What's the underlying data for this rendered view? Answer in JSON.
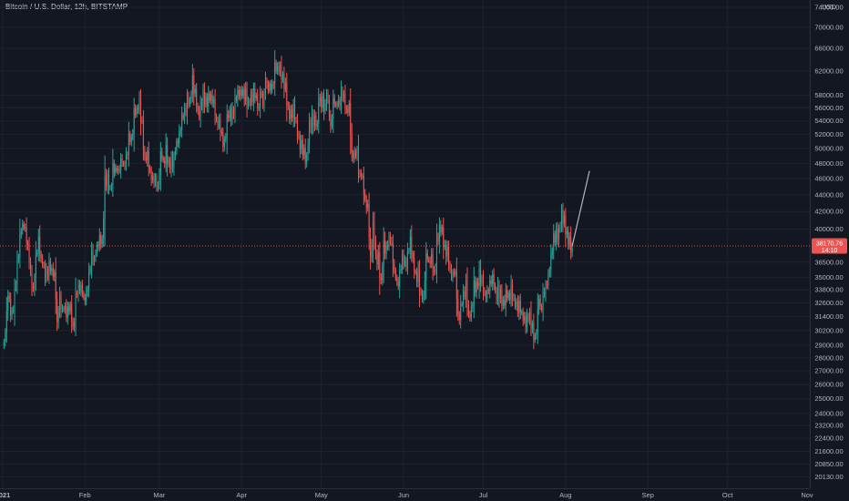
{
  "header": {
    "title": "Bitcoin / U.S. Dollar, 12h, BITSTAMP"
  },
  "axis": {
    "currency": "USD"
  },
  "last_price": {
    "value": "38170.76",
    "countdown": "14:10"
  },
  "colors": {
    "up": "#26a69a",
    "down": "#ef5350",
    "projection": "#b2b5be",
    "grid": "#1e222d",
    "price_line": "#ef5350"
  },
  "chart_data": {
    "type": "candlestick",
    "title": "Bitcoin / U.S. Dollar, 12h, BITSTAMP",
    "y_unit": "USD",
    "y_scale": "log",
    "ylim": [
      19500,
      75500
    ],
    "y_ticks": [
      "74000.00",
      "70000.00",
      "66000.00",
      "62000.00",
      "58000.00",
      "56000.00",
      "54000.00",
      "52000.00",
      "50000.00",
      "48000.00",
      "46000.00",
      "44000.00",
      "42000.00",
      "40000.00",
      "38170.76",
      "36500.00",
      "35000.00",
      "33800.00",
      "32600.00",
      "31400.00",
      "30200.00",
      "29000.00",
      "28000.00",
      "27000.00",
      "26000.00",
      "25000.00",
      "24000.00",
      "23200.00",
      "22400.00",
      "21600.00",
      "20850.00",
      "20130.00"
    ],
    "x_ticks": [
      "2021",
      "Feb",
      "Mar",
      "Apr",
      "May",
      "Jun",
      "Jul",
      "Aug",
      "Sep",
      "Oct",
      "Nov"
    ],
    "xlim": [
      "2020-12-31",
      "2021-11-01"
    ],
    "last_close": 38170.76,
    "candle_interval": "12h",
    "closes": [
      [
        "2021-01-01",
        29300
      ],
      [
        "2021-01-02",
        31900
      ],
      [
        "2021-01-03",
        33000
      ],
      [
        "2021-01-04",
        31900
      ],
      [
        "2021-01-05",
        34000
      ],
      [
        "2021-01-06",
        36800
      ],
      [
        "2021-01-07",
        39500
      ],
      [
        "2021-01-08",
        40600
      ],
      [
        "2021-01-09",
        40200
      ],
      [
        "2021-01-10",
        38200
      ],
      [
        "2021-01-11",
        35500
      ],
      [
        "2021-01-12",
        33900
      ],
      [
        "2021-01-13",
        37300
      ],
      [
        "2021-01-14",
        39200
      ],
      [
        "2021-01-15",
        36900
      ],
      [
        "2021-01-16",
        36100
      ],
      [
        "2021-01-17",
        35800
      ],
      [
        "2021-01-18",
        36600
      ],
      [
        "2021-01-19",
        35900
      ],
      [
        "2021-01-20",
        35500
      ],
      [
        "2021-01-21",
        30900
      ],
      [
        "2021-01-22",
        33200
      ],
      [
        "2021-01-23",
        32100
      ],
      [
        "2021-01-24",
        32300
      ],
      [
        "2021-01-25",
        32300
      ],
      [
        "2021-01-26",
        32500
      ],
      [
        "2021-01-27",
        30500
      ],
      [
        "2021-01-28",
        33500
      ],
      [
        "2021-01-29",
        34300
      ],
      [
        "2021-01-30",
        34300
      ],
      [
        "2021-01-31",
        33100
      ],
      [
        "2021-02-01",
        33600
      ],
      [
        "2021-02-02",
        35500
      ],
      [
        "2021-02-03",
        37700
      ],
      [
        "2021-02-04",
        36900
      ],
      [
        "2021-02-05",
        38300
      ],
      [
        "2021-02-06",
        39300
      ],
      [
        "2021-02-07",
        38900
      ],
      [
        "2021-02-08",
        46400
      ],
      [
        "2021-02-09",
        46500
      ],
      [
        "2021-02-10",
        44900
      ],
      [
        "2021-02-11",
        48000
      ],
      [
        "2021-02-12",
        47400
      ],
      [
        "2021-02-13",
        47200
      ],
      [
        "2021-02-14",
        48700
      ],
      [
        "2021-02-15",
        47900
      ],
      [
        "2021-02-16",
        49200
      ],
      [
        "2021-02-17",
        52100
      ],
      [
        "2021-02-18",
        51600
      ],
      [
        "2021-02-19",
        55900
      ],
      [
        "2021-02-20",
        56000
      ],
      [
        "2021-02-21",
        57500
      ],
      [
        "2021-02-22",
        54100
      ],
      [
        "2021-02-23",
        48900
      ],
      [
        "2021-02-24",
        49700
      ],
      [
        "2021-02-25",
        47000
      ],
      [
        "2021-02-26",
        46300
      ],
      [
        "2021-02-27",
        46200
      ],
      [
        "2021-02-28",
        45200
      ],
      [
        "2021-03-01",
        49600
      ],
      [
        "2021-03-02",
        48400
      ],
      [
        "2021-03-03",
        50500
      ],
      [
        "2021-03-04",
        48400
      ],
      [
        "2021-03-05",
        48800
      ],
      [
        "2021-03-06",
        48900
      ],
      [
        "2021-03-07",
        51000
      ],
      [
        "2021-03-08",
        52400
      ],
      [
        "2021-03-09",
        54900
      ],
      [
        "2021-03-10",
        56000
      ],
      [
        "2021-03-11",
        57800
      ],
      [
        "2021-03-12",
        57300
      ],
      [
        "2021-03-13",
        61200
      ],
      [
        "2021-03-14",
        59000
      ],
      [
        "2021-03-15",
        55600
      ],
      [
        "2021-03-16",
        56900
      ],
      [
        "2021-03-17",
        58900
      ],
      [
        "2021-03-18",
        57700
      ],
      [
        "2021-03-19",
        58300
      ],
      [
        "2021-03-20",
        58100
      ],
      [
        "2021-03-21",
        57400
      ],
      [
        "2021-03-22",
        54100
      ],
      [
        "2021-03-23",
        54300
      ],
      [
        "2021-03-24",
        52300
      ],
      [
        "2021-03-25",
        51300
      ],
      [
        "2021-03-26",
        55000
      ],
      [
        "2021-03-27",
        55800
      ],
      [
        "2021-03-28",
        55800
      ],
      [
        "2021-03-29",
        57600
      ],
      [
        "2021-03-30",
        58800
      ],
      [
        "2021-03-31",
        58900
      ],
      [
        "2021-04-01",
        59000
      ],
      [
        "2021-04-02",
        59000
      ],
      [
        "2021-04-03",
        57100
      ],
      [
        "2021-04-04",
        58200
      ],
      [
        "2021-04-05",
        59100
      ],
      [
        "2021-04-06",
        58000
      ],
      [
        "2021-04-07",
        56000
      ],
      [
        "2021-04-08",
        58100
      ],
      [
        "2021-04-09",
        58200
      ],
      [
        "2021-04-10",
        59800
      ],
      [
        "2021-04-11",
        59900
      ],
      [
        "2021-04-12",
        59800
      ],
      [
        "2021-04-13",
        63500
      ],
      [
        "2021-04-14",
        62900
      ],
      [
        "2021-04-15",
        63100
      ],
      [
        "2021-04-16",
        61500
      ],
      [
        "2021-04-17",
        60100
      ],
      [
        "2021-04-18",
        56200
      ],
      [
        "2021-04-19",
        55700
      ],
      [
        "2021-04-20",
        56500
      ],
      [
        "2021-04-21",
        54000
      ],
      [
        "2021-04-22",
        51700
      ],
      [
        "2021-04-23",
        51200
      ],
      [
        "2021-04-24",
        50100
      ],
      [
        "2021-04-25",
        49100
      ],
      [
        "2021-04-26",
        54000
      ],
      [
        "2021-04-27",
        55000
      ],
      [
        "2021-04-28",
        54800
      ],
      [
        "2021-04-29",
        53600
      ],
      [
        "2021-04-30",
        57700
      ],
      [
        "2021-05-01",
        57800
      ],
      [
        "2021-05-02",
        56600
      ],
      [
        "2021-05-03",
        57200
      ],
      [
        "2021-05-04",
        53200
      ],
      [
        "2021-05-05",
        57500
      ],
      [
        "2021-05-06",
        56400
      ],
      [
        "2021-05-07",
        57300
      ],
      [
        "2021-05-08",
        58900
      ],
      [
        "2021-05-09",
        58200
      ],
      [
        "2021-05-10",
        55800
      ],
      [
        "2021-05-11",
        56700
      ],
      [
        "2021-05-12",
        49400
      ],
      [
        "2021-05-13",
        49700
      ],
      [
        "2021-05-14",
        49900
      ],
      [
        "2021-05-15",
        46700
      ],
      [
        "2021-05-16",
        46400
      ],
      [
        "2021-05-17",
        43500
      ],
      [
        "2021-05-18",
        42900
      ],
      [
        "2021-05-19",
        37000
      ],
      [
        "2021-05-20",
        40800
      ],
      [
        "2021-05-21",
        37300
      ],
      [
        "2021-05-22",
        37500
      ],
      [
        "2021-05-23",
        34700
      ],
      [
        "2021-05-24",
        38800
      ],
      [
        "2021-05-25",
        38300
      ],
      [
        "2021-05-26",
        39300
      ],
      [
        "2021-05-27",
        38500
      ],
      [
        "2021-05-28",
        35700
      ],
      [
        "2021-05-29",
        34600
      ],
      [
        "2021-05-30",
        35700
      ],
      [
        "2021-05-31",
        37300
      ],
      [
        "2021-06-01",
        36700
      ],
      [
        "2021-06-02",
        37600
      ],
      [
        "2021-06-03",
        39200
      ],
      [
        "2021-06-04",
        36900
      ],
      [
        "2021-06-05",
        35500
      ],
      [
        "2021-06-06",
        35800
      ],
      [
        "2021-06-07",
        33600
      ],
      [
        "2021-06-08",
        33400
      ],
      [
        "2021-06-09",
        37400
      ],
      [
        "2021-06-10",
        36700
      ],
      [
        "2021-06-11",
        37300
      ],
      [
        "2021-06-12",
        35500
      ],
      [
        "2021-06-13",
        39100
      ],
      [
        "2021-06-14",
        40500
      ],
      [
        "2021-06-15",
        40200
      ],
      [
        "2021-06-16",
        38300
      ],
      [
        "2021-06-17",
        38100
      ],
      [
        "2021-06-18",
        35800
      ],
      [
        "2021-06-19",
        35500
      ],
      [
        "2021-06-20",
        35600
      ],
      [
        "2021-06-21",
        31600
      ],
      [
        "2021-06-22",
        32500
      ],
      [
        "2021-06-23",
        33700
      ],
      [
        "2021-06-24",
        34700
      ],
      [
        "2021-06-25",
        31600
      ],
      [
        "2021-06-26",
        32200
      ],
      [
        "2021-06-27",
        34700
      ],
      [
        "2021-06-28",
        34500
      ],
      [
        "2021-06-29",
        35900
      ],
      [
        "2021-06-30",
        35000
      ],
      [
        "2021-07-01",
        33500
      ],
      [
        "2021-07-02",
        33800
      ],
      [
        "2021-07-03",
        34700
      ],
      [
        "2021-07-04",
        35300
      ],
      [
        "2021-07-05",
        33700
      ],
      [
        "2021-07-06",
        34200
      ],
      [
        "2021-07-07",
        33800
      ],
      [
        "2021-07-08",
        32900
      ],
      [
        "2021-07-09",
        33800
      ],
      [
        "2021-07-10",
        33500
      ],
      [
        "2021-07-11",
        34300
      ],
      [
        "2021-07-12",
        33100
      ],
      [
        "2021-07-13",
        32700
      ],
      [
        "2021-07-14",
        32800
      ],
      [
        "2021-07-15",
        31800
      ],
      [
        "2021-07-16",
        31400
      ],
      [
        "2021-07-17",
        31500
      ],
      [
        "2021-07-18",
        31800
      ],
      [
        "2021-07-19",
        30800
      ],
      [
        "2021-07-20",
        29800
      ],
      [
        "2021-07-21",
        32100
      ],
      [
        "2021-07-22",
        32300
      ],
      [
        "2021-07-23",
        33600
      ],
      [
        "2021-07-24",
        34300
      ],
      [
        "2021-07-25",
        35400
      ],
      [
        "2021-07-26",
        37300
      ],
      [
        "2021-07-27",
        39500
      ],
      [
        "2021-07-28",
        40000
      ],
      [
        "2021-07-29",
        40000
      ],
      [
        "2021-07-30",
        42200
      ],
      [
        "2021-07-31",
        41500
      ],
      [
        "2021-08-01",
        39800
      ],
      [
        "2021-08-02",
        39200
      ],
      [
        "2021-08-03",
        38170.76
      ]
    ],
    "projection": [
      [
        "2021-08-03",
        38170.76
      ],
      [
        "2021-08-10",
        47000
      ]
    ]
  }
}
